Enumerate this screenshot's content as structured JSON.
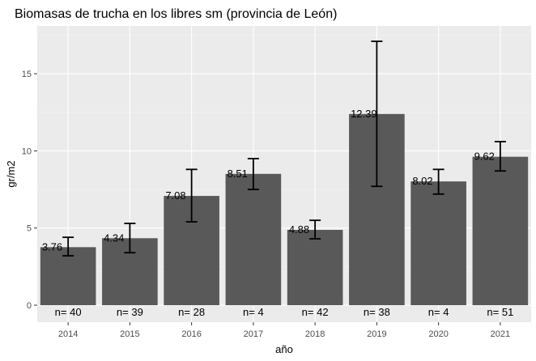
{
  "chart_data": {
    "type": "bar",
    "title": "Biomasas de trucha en los libres sm (provincia de León)",
    "xlabel": "año",
    "ylabel": "gr/m2",
    "categories": [
      "2014",
      "2015",
      "2016",
      "2017",
      "2018",
      "2019",
      "2020",
      "2021"
    ],
    "values": [
      3.76,
      4.34,
      7.08,
      8.51,
      4.88,
      12.39,
      8.02,
      9.62
    ],
    "value_labels": [
      "3.76",
      "4.34",
      "7.08",
      "8.51",
      "4.88",
      "12.39",
      "8.02",
      "9.62"
    ],
    "error_low": [
      3.2,
      3.4,
      5.4,
      7.5,
      4.3,
      7.7,
      7.2,
      8.7
    ],
    "error_high": [
      4.4,
      5.3,
      8.8,
      9.5,
      5.5,
      17.1,
      8.8,
      10.6
    ],
    "n_labels": [
      "n=  40",
      "n=  39",
      "n=  28",
      "n=  4",
      "n=  42",
      "n=  38",
      "n=  4",
      "n=  51"
    ],
    "ylim": [
      -1.1,
      18.1
    ],
    "yticks": [
      0,
      5,
      10,
      15
    ],
    "ytick_labels": [
      "0",
      "5",
      "10",
      "15"
    ],
    "grid": true,
    "colors": {
      "bar": "#595959",
      "panel": "#ebebeb",
      "grid_major": "#ffffff",
      "errorbar": "#000000"
    }
  }
}
